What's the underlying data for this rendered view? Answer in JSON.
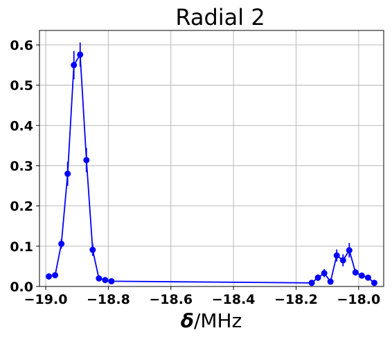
{
  "chart_data": {
    "type": "scatter",
    "title": "Radial 2",
    "xlabel_symbol": "δ",
    "xlabel_unit": "/MHz",
    "ylabel": "",
    "xlim": [
      -19.02,
      -17.92
    ],
    "ylim": [
      0.0,
      0.636
    ],
    "grid": true,
    "x_ticks": [
      -19.0,
      -18.8,
      -18.6,
      -18.4,
      -18.2,
      -18.0
    ],
    "x_tick_labels": [
      "−19.0",
      "−18.8",
      "−18.6",
      "−18.4",
      "−18.2",
      "−18.0"
    ],
    "y_ticks": [
      0.0,
      0.1,
      0.2,
      0.3,
      0.4,
      0.5,
      0.6
    ],
    "y_tick_labels": [
      "0.0",
      "0.1",
      "0.2",
      "0.3",
      "0.4",
      "0.5",
      "0.6"
    ],
    "color": "#0000ff",
    "series": [
      {
        "x": [
          -18.99,
          -18.97,
          -18.95,
          -18.93,
          -18.91,
          -18.89,
          -18.87,
          -18.85,
          -18.83,
          -18.81,
          -18.79,
          -18.15,
          -18.13,
          -18.11,
          -18.09,
          -18.07,
          -18.05,
          -18.03,
          -18.01,
          -17.99,
          -17.97,
          -17.95
        ],
        "y": [
          0.025,
          0.028,
          0.106,
          0.28,
          0.55,
          0.576,
          0.314,
          0.091,
          0.02,
          0.016,
          0.013,
          0.009,
          0.022,
          0.033,
          0.012,
          0.077,
          0.065,
          0.09,
          0.035,
          0.027,
          0.022,
          0.009
        ],
        "yerr": [
          0.008,
          0.005,
          0.012,
          0.03,
          0.035,
          0.03,
          0.03,
          0.015,
          0.003,
          0.003,
          0.002,
          0.002,
          0.008,
          0.01,
          0.003,
          0.015,
          0.015,
          0.018,
          0.008,
          0.005,
          0.004,
          0.002
        ]
      }
    ]
  }
}
